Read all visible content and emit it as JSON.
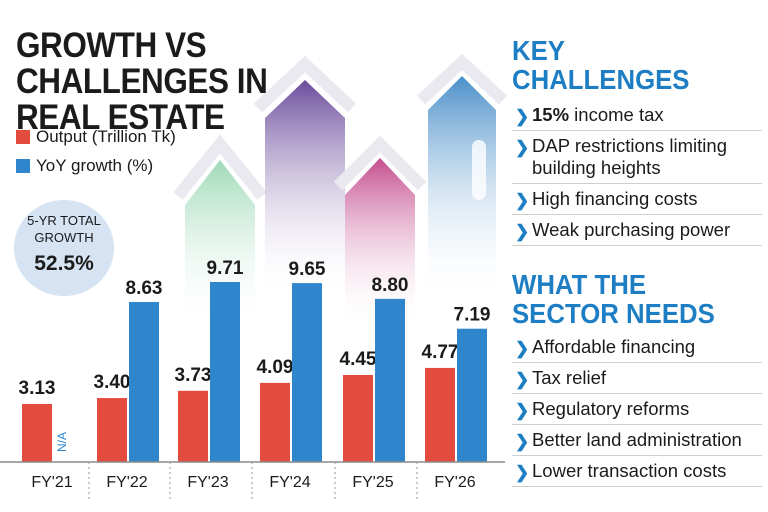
{
  "title": "GROWTH VS CHALLENGES IN REAL ESTATE",
  "legend": [
    {
      "label": "Output (Trillion Tk)",
      "color": "#e24b3e"
    },
    {
      "label": "YoY growth (%)",
      "color": "#2f86cc"
    }
  ],
  "badge": {
    "label": "5-YR TOTAL\nGROWTH",
    "value": "52.5%"
  },
  "chart_data": {
    "type": "bar",
    "title": "GROWTH VS CHALLENGES IN REAL ESTATE",
    "categories": [
      "FY'21",
      "FY'22",
      "FY'23",
      "FY'24",
      "FY'25",
      "FY'26"
    ],
    "series": [
      {
        "name": "Output (Trillion Tk)",
        "color": "#e24b3e",
        "values": [
          3.13,
          3.4,
          3.73,
          4.09,
          4.45,
          4.77
        ],
        "labels": [
          "3.13",
          "3.40",
          "3.73",
          "4.09",
          "4.45",
          "4.77"
        ]
      },
      {
        "name": "YoY growth (%)",
        "color": "#2f86cc",
        "values": [
          null,
          8.63,
          9.71,
          9.65,
          8.8,
          7.19
        ],
        "labels": [
          "N/A",
          "8.63",
          "9.71",
          "9.65",
          "8.80",
          "7.19"
        ]
      }
    ],
    "grid": false,
    "legend_position": "top-left"
  },
  "challenges": {
    "heading": "KEY CHALLENGES",
    "items": [
      {
        "bold": "15%",
        "text": " income tax"
      },
      {
        "bold": "",
        "text": "DAP restrictions limiting building heights"
      },
      {
        "bold": "",
        "text": "High financing costs"
      },
      {
        "bold": "",
        "text": "Weak purchasing power"
      }
    ]
  },
  "needs": {
    "heading": "WHAT THE\nSECTOR NEEDS",
    "items": [
      {
        "bold": "",
        "text": "Affordable financing"
      },
      {
        "bold": "",
        "text": "Tax relief"
      },
      {
        "bold": "",
        "text": "Regulatory reforms"
      },
      {
        "bold": "",
        "text": "Better land administration"
      },
      {
        "bold": "",
        "text": "Lower transaction costs"
      }
    ]
  },
  "colors": {
    "accent": "#1e7ec4",
    "output_bar": "#e24b3e",
    "growth_bar": "#2f86cc",
    "badge": "#d6e3f2"
  }
}
